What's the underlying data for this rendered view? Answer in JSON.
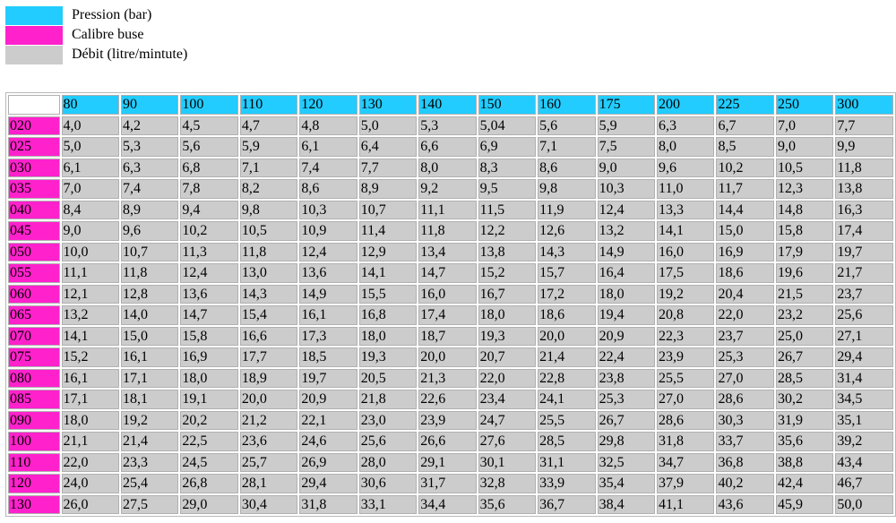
{
  "colors": {
    "pressure": "#22ccff",
    "nozzle": "#ff22cc",
    "flow": "#cccccc"
  },
  "legend": [
    {
      "label": "Pression (bar)",
      "color_key": "pressure"
    },
    {
      "label": "Calibre buse",
      "color_key": "nozzle"
    },
    {
      "label": "Débit (litre/mintute)",
      "color_key": "flow"
    }
  ],
  "table": {
    "pressures": [
      "80",
      "90",
      "100",
      "110",
      "120",
      "130",
      "140",
      "150",
      "160",
      "175",
      "200",
      "225",
      "250",
      "300"
    ],
    "rows": [
      {
        "nozzle": "020",
        "values": [
          "4,0",
          "4,2",
          "4,5",
          "4,7",
          "4,8",
          "5,0",
          "5,3",
          "5,04",
          "5,6",
          "5,9",
          "6,3",
          "6,7",
          "7,0",
          "7,7"
        ]
      },
      {
        "nozzle": "025",
        "values": [
          "5,0",
          "5,3",
          "5,6",
          "5,9",
          "6,1",
          "6,4",
          "6,6",
          "6,9",
          "7,1",
          "7,5",
          "8,0",
          "8,5",
          "9,0",
          "9,9"
        ]
      },
      {
        "nozzle": "030",
        "values": [
          "6,1",
          "6,3",
          "6,8",
          "7,1",
          "7,4",
          "7,7",
          "8,0",
          "8,3",
          "8,6",
          "9,0",
          "9,6",
          "10,2",
          "10,5",
          "11,8"
        ]
      },
      {
        "nozzle": "035",
        "values": [
          "7,0",
          "7,4",
          "7,8",
          "8,2",
          "8,6",
          "8,9",
          "9,2",
          "9,5",
          "9,8",
          "10,3",
          "11,0",
          "11,7",
          "12,3",
          "13,8"
        ]
      },
      {
        "nozzle": "040",
        "values": [
          "8,4",
          "8,9",
          "9,4",
          "9,8",
          "10,3",
          "10,7",
          "11,1",
          "11,5",
          "11,9",
          "12,4",
          "13,3",
          "14,4",
          "14,8",
          "16,3"
        ]
      },
      {
        "nozzle": "045",
        "values": [
          "9,0",
          "9,6",
          "10,2",
          "10,5",
          "10,9",
          "11,4",
          "11,8",
          "12,2",
          "12,6",
          "13,2",
          "14,1",
          "15,0",
          "15,8",
          "17,4"
        ]
      },
      {
        "nozzle": "050",
        "values": [
          "10,0",
          "10,7",
          "11,3",
          "11,8",
          "12,4",
          "12,9",
          "13,4",
          "13,8",
          "14,3",
          "14,9",
          "16,0",
          "16,9",
          "17,9",
          "19,7"
        ]
      },
      {
        "nozzle": "055",
        "values": [
          "11,1",
          "11,8",
          "12,4",
          "13,0",
          "13,6",
          "14,1",
          "14,7",
          "15,2",
          "15,7",
          "16,4",
          "17,5",
          "18,6",
          "19,6",
          "21,7"
        ]
      },
      {
        "nozzle": "060",
        "values": [
          "12,1",
          "12,8",
          "13,6",
          "14,3",
          "14,9",
          "15,5",
          "16,0",
          "16,7",
          "17,2",
          "18,0",
          "19,2",
          "20,4",
          "21,5",
          "23,7"
        ]
      },
      {
        "nozzle": "065",
        "values": [
          "13,2",
          "14,0",
          "14,7",
          "15,4",
          "16,1",
          "16,8",
          "17,4",
          "18,0",
          "18,6",
          "19,4",
          "20,8",
          "22,0",
          "23,2",
          "25,6"
        ]
      },
      {
        "nozzle": "070",
        "values": [
          "14,1",
          "15,0",
          "15,8",
          "16,6",
          "17,3",
          "18,0",
          "18,7",
          "19,3",
          "20,0",
          "20,9",
          "22,3",
          "23,7",
          "25,0",
          "27,1"
        ]
      },
      {
        "nozzle": "075",
        "values": [
          "15,2",
          "16,1",
          "16,9",
          "17,7",
          "18,5",
          "19,3",
          "20,0",
          "20,7",
          "21,4",
          "22,4",
          "23,9",
          "25,3",
          "26,7",
          "29,4"
        ]
      },
      {
        "nozzle": "080",
        "values": [
          "16,1",
          "17,1",
          "18,0",
          "18,9",
          "19,7",
          "20,5",
          "21,3",
          "22,0",
          "22,8",
          "23,8",
          "25,5",
          "27,0",
          "28,5",
          "31,4"
        ]
      },
      {
        "nozzle": "085",
        "values": [
          "17,1",
          "18,1",
          "19,1",
          "20,0",
          "20,9",
          "21,8",
          "22,6",
          "23,4",
          "24,1",
          "25,3",
          "27,0",
          "28,6",
          "30,2",
          "34,5"
        ]
      },
      {
        "nozzle": "090",
        "values": [
          "18,0",
          "19,2",
          "20,2",
          "21,2",
          "22,1",
          "23,0",
          "23,9",
          "24,7",
          "25,5",
          "26,7",
          "28,6",
          "30,3",
          "31,9",
          "35,1"
        ]
      },
      {
        "nozzle": "100",
        "values": [
          "21,1",
          "21,4",
          "22,5",
          "23,6",
          "24,6",
          "25,6",
          "26,6",
          "27,6",
          "28,5",
          "29,8",
          "31,8",
          "33,7",
          "35,6",
          "39,2"
        ]
      },
      {
        "nozzle": "110",
        "values": [
          "22,0",
          "23,3",
          "24,5",
          "25,7",
          "26,9",
          "28,0",
          "29,1",
          "30,1",
          "31,1",
          "32,5",
          "34,7",
          "36,8",
          "38,8",
          "43,4"
        ]
      },
      {
        "nozzle": "120",
        "values": [
          "24,0",
          "25,4",
          "26,8",
          "28,1",
          "29,4",
          "30,6",
          "31,7",
          "32,8",
          "33,9",
          "35,4",
          "37,9",
          "40,2",
          "42,4",
          "46,7"
        ]
      },
      {
        "nozzle": "130",
        "values": [
          "26,0",
          "27,5",
          "29,0",
          "30,4",
          "31,8",
          "33,1",
          "34,4",
          "35,6",
          "36,7",
          "38,4",
          "41,1",
          "43,6",
          "45,9",
          "50,0"
        ]
      }
    ]
  }
}
